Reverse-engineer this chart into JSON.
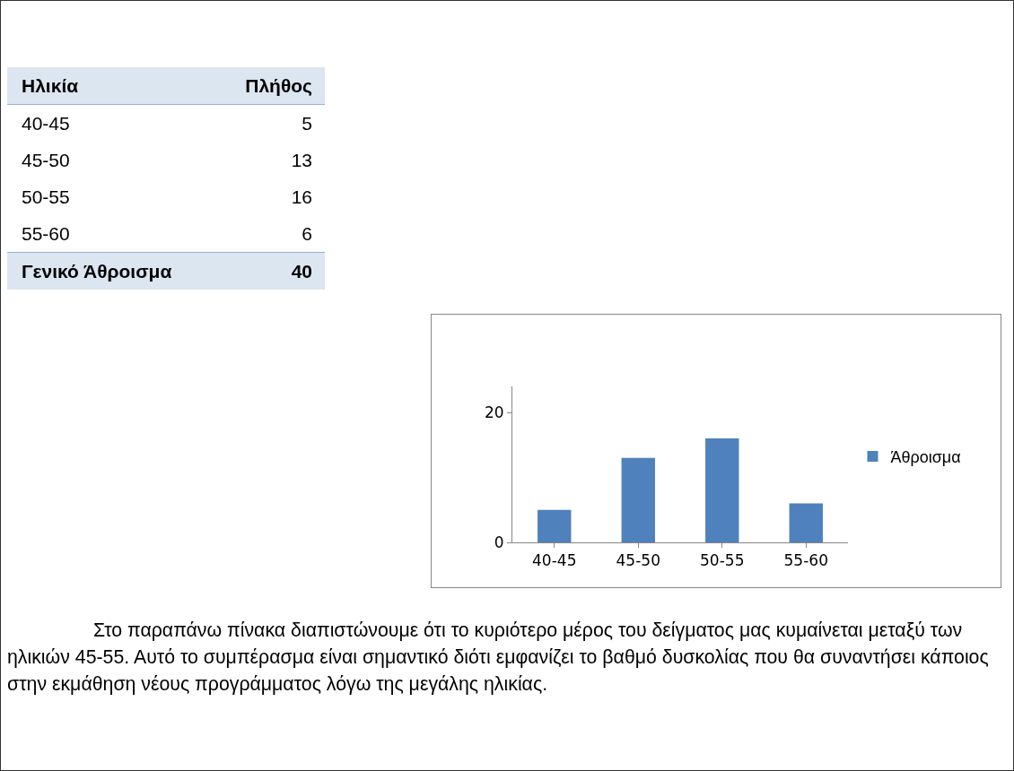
{
  "chart_data": {
    "type": "bar",
    "categories": [
      "40-45",
      "45-50",
      "50-55",
      "55-60"
    ],
    "series": [
      {
        "name": "Άθροισμα",
        "color": "#4f81bd",
        "values": [
          5,
          13,
          16,
          6
        ]
      }
    ],
    "ylim": [
      0,
      24
    ],
    "yticks": [
      0,
      20
    ],
    "legend": "right",
    "annotations": [
      "Ηλικία",
      "Πλήθος",
      "5",
      "13",
      "16",
      "6",
      "Γενικό Άθροισμα",
      "40",
      "Στο παραπάνω πίνακα διαπιστώνουμε ότι το κυριότερο μέρος του δείγματος μας κυμαίνεται μεταξύ των ηλικιών 45-55. Αυτό το συμπέρασμα είναι σημαντικό διότι εμφανίζει το βαθμό δυσκολίας που θα συναντήσει κάποιος στην εκμάθηση νέους προγράμματος λόγω της μεγάλης ηλικίας."
    ]
  }
}
